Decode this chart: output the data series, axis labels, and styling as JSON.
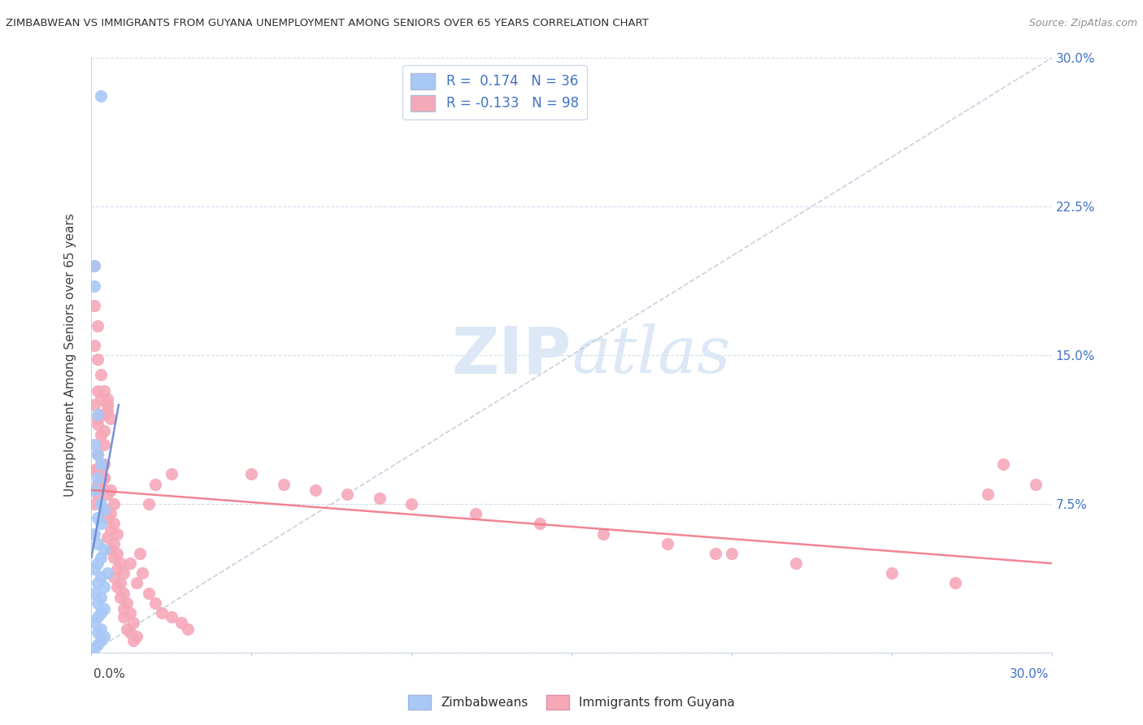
{
  "title": "ZIMBABWEAN VS IMMIGRANTS FROM GUYANA UNEMPLOYMENT AMONG SENIORS OVER 65 YEARS CORRELATION CHART",
  "source": "Source: ZipAtlas.com",
  "ylabel": "Unemployment Among Seniors over 65 years",
  "zim_color": "#a8c8f5",
  "guy_color": "#f5a8b8",
  "zim_line_color": "#6888d0",
  "guy_line_color": "#f07888",
  "diag_line_color": "#c0c8d8",
  "watermark_color": "#dce8f5",
  "zim_R": 0.174,
  "guy_R": -0.133,
  "zim_N": 36,
  "guy_N": 98,
  "xlim": [
    0.0,
    0.3
  ],
  "ylim": [
    0.0,
    0.3
  ],
  "zim_x": [
    0.003,
    0.001,
    0.001,
    0.002,
    0.001,
    0.002,
    0.003,
    0.002,
    0.001,
    0.003,
    0.004,
    0.002,
    0.003,
    0.001,
    0.002,
    0.004,
    0.003,
    0.002,
    0.001,
    0.005,
    0.003,
    0.002,
    0.004,
    0.001,
    0.003,
    0.002,
    0.004,
    0.003,
    0.002,
    0.001,
    0.003,
    0.002,
    0.004,
    0.003,
    0.002,
    0.001
  ],
  "zim_y": [
    0.281,
    0.195,
    0.185,
    0.12,
    0.105,
    0.1,
    0.095,
    0.088,
    0.082,
    0.075,
    0.072,
    0.068,
    0.065,
    0.06,
    0.055,
    0.052,
    0.048,
    0.045,
    0.042,
    0.04,
    0.038,
    0.035,
    0.033,
    0.03,
    0.028,
    0.025,
    0.022,
    0.02,
    0.018,
    0.015,
    0.012,
    0.01,
    0.008,
    0.006,
    0.004,
    0.002
  ],
  "guy_x": [
    0.001,
    0.001,
    0.002,
    0.001,
    0.002,
    0.003,
    0.002,
    0.001,
    0.003,
    0.002,
    0.003,
    0.004,
    0.002,
    0.003,
    0.001,
    0.004,
    0.003,
    0.002,
    0.004,
    0.003,
    0.001,
    0.005,
    0.002,
    0.004,
    0.003,
    0.002,
    0.005,
    0.003,
    0.004,
    0.002,
    0.005,
    0.004,
    0.003,
    0.006,
    0.005,
    0.004,
    0.006,
    0.005,
    0.007,
    0.004,
    0.006,
    0.005,
    0.007,
    0.006,
    0.008,
    0.005,
    0.007,
    0.006,
    0.008,
    0.007,
    0.009,
    0.008,
    0.01,
    0.007,
    0.009,
    0.008,
    0.01,
    0.009,
    0.011,
    0.01,
    0.012,
    0.01,
    0.013,
    0.011,
    0.012,
    0.014,
    0.013,
    0.015,
    0.012,
    0.016,
    0.014,
    0.018,
    0.02,
    0.022,
    0.025,
    0.028,
    0.03,
    0.025,
    0.02,
    0.018,
    0.05,
    0.06,
    0.07,
    0.08,
    0.09,
    0.1,
    0.12,
    0.14,
    0.16,
    0.18,
    0.2,
    0.22,
    0.25,
    0.27,
    0.285,
    0.295,
    0.28,
    0.195
  ],
  "guy_y": [
    0.195,
    0.175,
    0.165,
    0.155,
    0.148,
    0.14,
    0.132,
    0.125,
    0.12,
    0.115,
    0.11,
    0.105,
    0.1,
    0.095,
    0.092,
    0.088,
    0.085,
    0.08,
    0.132,
    0.128,
    0.075,
    0.125,
    0.118,
    0.112,
    0.095,
    0.092,
    0.128,
    0.09,
    0.095,
    0.085,
    0.122,
    0.088,
    0.085,
    0.082,
    0.125,
    0.12,
    0.118,
    0.08,
    0.075,
    0.072,
    0.07,
    0.068,
    0.065,
    0.062,
    0.06,
    0.058,
    0.055,
    0.052,
    0.05,
    0.048,
    0.045,
    0.042,
    0.04,
    0.038,
    0.035,
    0.033,
    0.03,
    0.028,
    0.025,
    0.022,
    0.02,
    0.018,
    0.015,
    0.012,
    0.01,
    0.008,
    0.006,
    0.05,
    0.045,
    0.04,
    0.035,
    0.03,
    0.025,
    0.02,
    0.018,
    0.015,
    0.012,
    0.09,
    0.085,
    0.075,
    0.09,
    0.085,
    0.082,
    0.08,
    0.078,
    0.075,
    0.07,
    0.065,
    0.06,
    0.055,
    0.05,
    0.045,
    0.04,
    0.035,
    0.095,
    0.085,
    0.08,
    0.05
  ]
}
